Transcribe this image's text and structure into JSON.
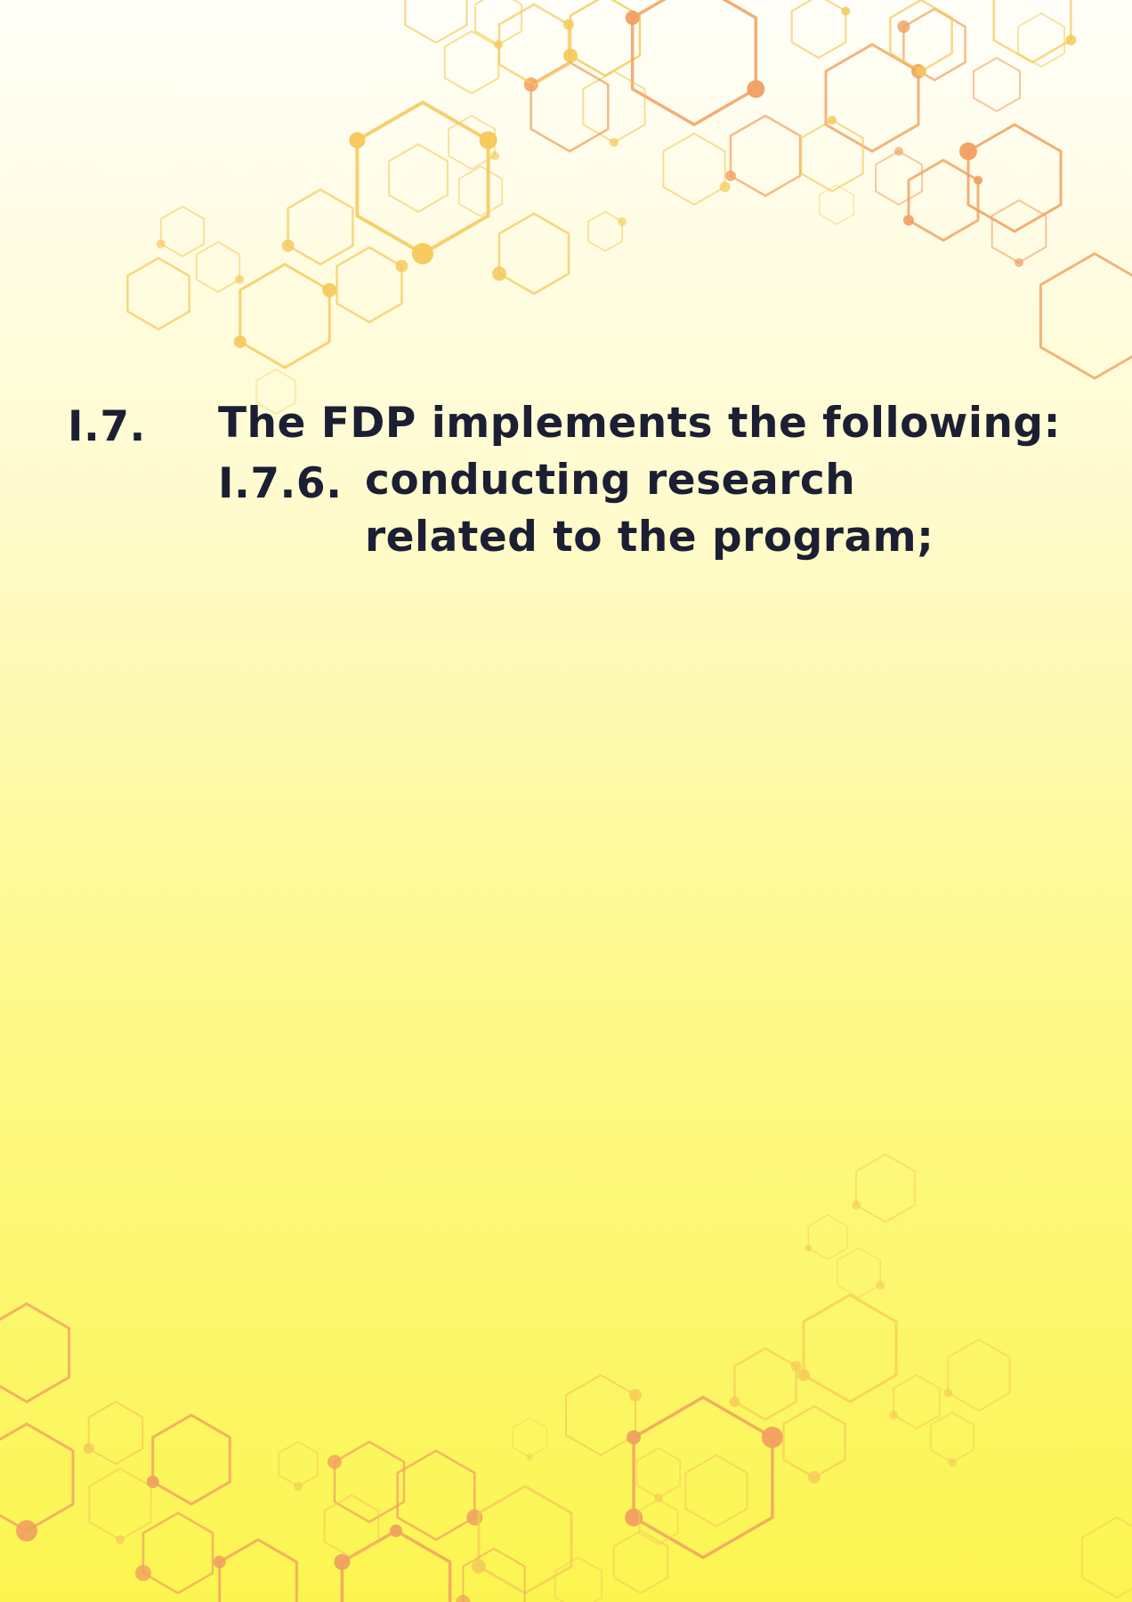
{
  "document": {
    "section": {
      "number": "I.7.",
      "heading": "The FDP implements the following:"
    },
    "item": {
      "number": "I.7.6.",
      "text": "conducting research related to the program;"
    }
  },
  "colors": {
    "text": "#1c1f33",
    "hex_orange": "#f0a060",
    "hex_gold": "#f5c858",
    "background_top": "#fffef8",
    "background_bottom": "#fcf550"
  }
}
